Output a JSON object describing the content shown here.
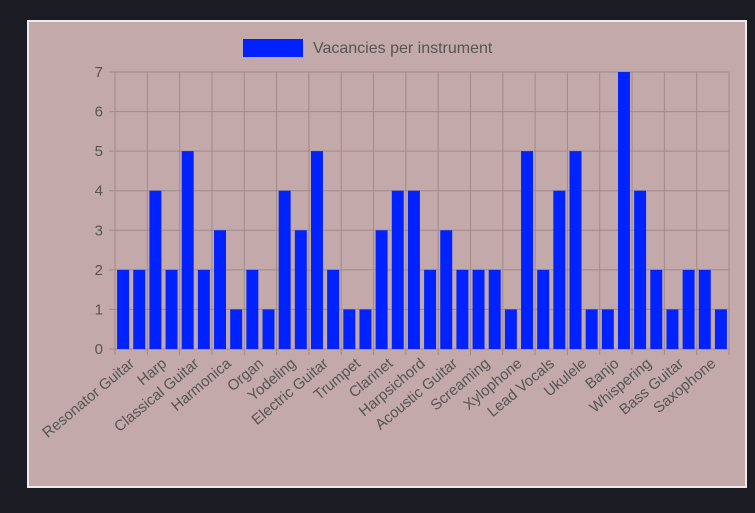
{
  "chart_data": {
    "type": "bar",
    "title": "",
    "xlabel": "",
    "ylabel": "",
    "legend": {
      "position": "top",
      "label": "Vacancies per instrument"
    },
    "ylim": [
      0,
      7
    ],
    "yticks": [
      0,
      1,
      2,
      3,
      4,
      5,
      6,
      7
    ],
    "grid": true,
    "colors": {
      "bar": "#0022ff",
      "grid": "#a08a8a",
      "panel": "#c3a9a9",
      "background": "#1c1c24"
    },
    "x_tick_labels": [
      "Resonator Guitar",
      "Harp",
      "Classical Guitar",
      "Harmonica",
      "Organ",
      "Yodeling",
      "Electric Guitar",
      "Trumpet",
      "Clarinet",
      "Harpsichord",
      "Acoustic Guitar",
      "Screaming",
      "Xylophone",
      "Lead Vocals",
      "Ukulele",
      "Banjo",
      "Whispering",
      "Bass Guitar",
      "Saxophone"
    ],
    "values": [
      2,
      2,
      4,
      2,
      5,
      2,
      3,
      1,
      2,
      1,
      4,
      3,
      5,
      2,
      1,
      1,
      3,
      4,
      4,
      2,
      3,
      2,
      2,
      2,
      1,
      5,
      2,
      4,
      5,
      1,
      1,
      7,
      4,
      2,
      1,
      2,
      2,
      1
    ]
  }
}
